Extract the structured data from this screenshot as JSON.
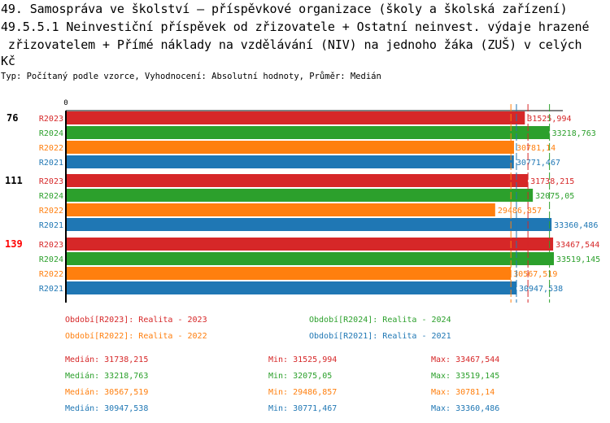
{
  "title_lines": [
    "49. Samospráva ve školství – příspěvkové organizace (školy a školská zařízení)",
    "49.5.5.1 Neinvestiční příspěvek od zřizovatele + Ostatní neinvest. výdaje hrazené",
    " zřizovatelem + Přímé náklady na vzdělávání (NIV) na jednoho žáka (ZUŠ) v celých",
    "Kč"
  ],
  "subtitle": "Typ: Počítaný podle vzorce, Vyhodnocení: Absolutní hodnoty, Průměr: Medián",
  "chart_data": {
    "type": "bar",
    "orientation": "horizontal",
    "x_tick_labels": [
      "0"
    ],
    "groups": [
      {
        "label": "76",
        "highlight": false,
        "bars": [
          {
            "series": "R2023",
            "value": 31525.994,
            "label": "31525,994"
          },
          {
            "series": "R2024",
            "value": 33218.763,
            "label": "33218,763"
          },
          {
            "series": "R2022",
            "value": 30781.14,
            "label": "30781,14"
          },
          {
            "series": "R2021",
            "value": 30771.467,
            "label": "30771,467"
          }
        ]
      },
      {
        "label": "111",
        "highlight": false,
        "bars": [
          {
            "series": "R2023",
            "value": 31738.215,
            "label": "31738,215"
          },
          {
            "series": "R2024",
            "value": 32075.05,
            "label": "32075,05"
          },
          {
            "series": "R2022",
            "value": 29486.857,
            "label": "29486,857"
          },
          {
            "series": "R2021",
            "value": 33360.486,
            "label": "33360,486"
          }
        ]
      },
      {
        "label": "139",
        "highlight": true,
        "bars": [
          {
            "series": "R2023",
            "value": 33467.544,
            "label": "33467,544"
          },
          {
            "series": "R2024",
            "value": 33519.145,
            "label": "33519,145"
          },
          {
            "series": "R2022",
            "value": 30567.519,
            "label": "30567,519"
          },
          {
            "series": "R2021",
            "value": 30947.538,
            "label": "30947,538"
          }
        ]
      }
    ],
    "colors": {
      "R2023": "#d62728",
      "R2024": "#2ca02c",
      "R2022": "#ff7f0e",
      "R2021": "#1f77b4",
      "highlight": "#ff0000"
    },
    "median_lines": {
      "R2023": 31738.215,
      "R2024": 33218.763,
      "R2022": 30567.519,
      "R2021": 30947.538
    },
    "legend": [
      {
        "series": "R2023",
        "text": "Období[R2023]: Realita - 2023"
      },
      {
        "series": "R2024",
        "text": "Období[R2024]: Realita - 2024"
      },
      {
        "series": "R2022",
        "text": "Období[R2022]: Realita - 2022"
      },
      {
        "series": "R2021",
        "text": "Období[R2021]: Realita - 2021"
      }
    ],
    "stats": [
      {
        "series": "R2023",
        "median": "Medián: 31738,215",
        "min": "Min: 31525,994",
        "max": "Max: 33467,544"
      },
      {
        "series": "R2024",
        "median": "Medián: 33218,763",
        "min": "Min: 32075,05",
        "max": "Max: 33519,145"
      },
      {
        "series": "R2022",
        "median": "Medián: 30567,519",
        "min": "Min: 29486,857",
        "max": "Max: 30781,14"
      },
      {
        "series": "R2021",
        "median": "Medián: 30947,538",
        "min": "Min: 30771,467",
        "max": "Max: 33360,486"
      }
    ]
  }
}
